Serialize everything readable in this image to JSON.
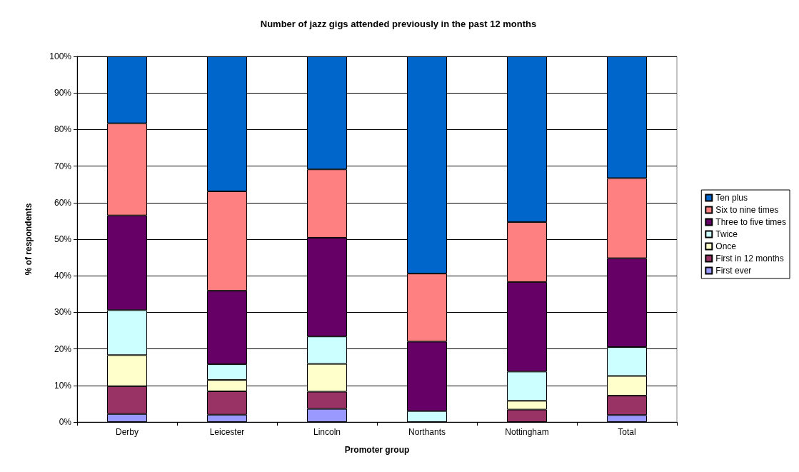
{
  "chart_data": {
    "type": "bar",
    "stacked": true,
    "title": "Number of jazz gigs attended previously in the past 12 months",
    "xlabel": "Promoter group",
    "ylabel": "% of respondents",
    "categories": [
      "Derby",
      "Leicester",
      "Lincoln",
      "Northants",
      "Nottingham",
      "Total"
    ],
    "series": [
      {
        "name": "First ever",
        "color": "#9999ff",
        "values": [
          2.2,
          2.0,
          3.6,
          0,
          0,
          1.9
        ]
      },
      {
        "name": "First in 12 months",
        "color": "#993366",
        "values": [
          7.6,
          6.4,
          4.7,
          0,
          3.4,
          5.3
        ]
      },
      {
        "name": "Once",
        "color": "#ffffcc",
        "values": [
          8.5,
          3.1,
          7.6,
          0,
          2.4,
          5.4
        ]
      },
      {
        "name": "Twice",
        "color": "#ccffff",
        "values": [
          12.3,
          4.3,
          7.5,
          3.0,
          8.0,
          7.9
        ]
      },
      {
        "name": "Three to five times",
        "color": "#660066",
        "values": [
          25.9,
          20.1,
          27.0,
          19.0,
          24.5,
          24.3
        ]
      },
      {
        "name": "Six to nine times",
        "color": "#ff8080",
        "values": [
          25.2,
          27.2,
          18.7,
          18.6,
          16.4,
          21.9
        ]
      },
      {
        "name": "Ten plus",
        "color": "#0066cc",
        "values": [
          18.3,
          36.9,
          30.9,
          59.4,
          45.3,
          33.3
        ]
      }
    ],
    "ylim": [
      0,
      100
    ],
    "yticks": [
      {
        "value": 0,
        "label": "0%"
      },
      {
        "value": 10,
        "label": "10%"
      },
      {
        "value": 20,
        "label": "20%"
      },
      {
        "value": 30,
        "label": "30%"
      },
      {
        "value": 40,
        "label": "40%"
      },
      {
        "value": 50,
        "label": "50%"
      },
      {
        "value": 60,
        "label": "60%"
      },
      {
        "value": 70,
        "label": "70%"
      },
      {
        "value": 80,
        "label": "80%"
      },
      {
        "value": 90,
        "label": "90%"
      },
      {
        "value": 100,
        "label": "100%"
      }
    ],
    "grid": "y",
    "legend": "right"
  }
}
